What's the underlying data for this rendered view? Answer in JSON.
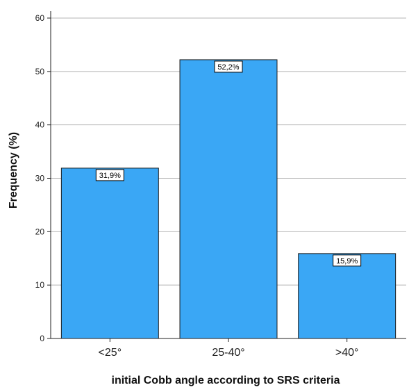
{
  "chart_data": {
    "type": "bar",
    "categories": [
      "<25°",
      "25-40°",
      ">40°"
    ],
    "values": [
      31.9,
      52.2,
      15.9
    ],
    "data_labels": [
      "31,9%",
      "52,2%",
      "15,9%"
    ],
    "title": "",
    "xlabel": "initial Cobb angle according to SRS criteria",
    "ylabel": "Frequency (%)",
    "ylim": [
      0,
      60
    ],
    "yticks": [
      0,
      10,
      20,
      30,
      40,
      50,
      60
    ],
    "grid": true,
    "legend": "none",
    "colors": {
      "bar": "#3aa7f5",
      "bar_stroke": "#1a1a1a",
      "grid": "#b5b5b5",
      "axis": "#222222"
    }
  }
}
